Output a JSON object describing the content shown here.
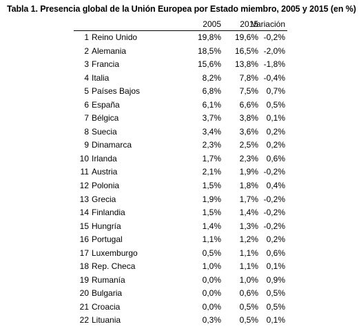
{
  "title": "Tabla 1. Presencia global de la Unión Europea por Estado miembro, 2005 y 2015 (en %)",
  "table": {
    "columns": [
      "2005",
      "2015",
      "Variación"
    ],
    "rows": [
      {
        "rank": "1",
        "country": "Reino Unido",
        "y2005": "19,8%",
        "y2015": "19,6%",
        "change": "-0,2%"
      },
      {
        "rank": "2",
        "country": "Alemania",
        "y2005": "18,5%",
        "y2015": "16,5%",
        "change": "-2,0%"
      },
      {
        "rank": "3",
        "country": "Francia",
        "y2005": "15,6%",
        "y2015": "13,8%",
        "change": "-1,8%"
      },
      {
        "rank": "4",
        "country": "Italia",
        "y2005": "8,2%",
        "y2015": "7,8%",
        "change": "-0,4%"
      },
      {
        "rank": "5",
        "country": "Países Bajos",
        "y2005": "6,8%",
        "y2015": "7,5%",
        "change": "0,7%"
      },
      {
        "rank": "6",
        "country": "España",
        "y2005": "6,1%",
        "y2015": "6,6%",
        "change": "0,5%"
      },
      {
        "rank": "7",
        "country": "Bélgica",
        "y2005": "3,7%",
        "y2015": "3,8%",
        "change": "0,1%"
      },
      {
        "rank": "8",
        "country": "Suecia",
        "y2005": "3,4%",
        "y2015": "3,6%",
        "change": "0,2%"
      },
      {
        "rank": "9",
        "country": "Dinamarca",
        "y2005": "2,3%",
        "y2015": "2,5%",
        "change": "0,2%"
      },
      {
        "rank": "10",
        "country": "Irlanda",
        "y2005": "1,7%",
        "y2015": "2,3%",
        "change": "0,6%"
      },
      {
        "rank": "11",
        "country": "Austria",
        "y2005": "2,1%",
        "y2015": "1,9%",
        "change": "-0,2%"
      },
      {
        "rank": "12",
        "country": "Polonia",
        "y2005": "1,5%",
        "y2015": "1,8%",
        "change": "0,4%"
      },
      {
        "rank": "13",
        "country": "Grecia",
        "y2005": "1,9%",
        "y2015": "1,7%",
        "change": "-0,2%"
      },
      {
        "rank": "14",
        "country": "Finlandia",
        "y2005": "1,5%",
        "y2015": "1,4%",
        "change": "-0,2%"
      },
      {
        "rank": "15",
        "country": "Hungría",
        "y2005": "1,4%",
        "y2015": "1,3%",
        "change": "-0,2%"
      },
      {
        "rank": "16",
        "country": "Portugal",
        "y2005": "1,1%",
        "y2015": "1,2%",
        "change": "0,2%"
      },
      {
        "rank": "17",
        "country": "Luxemburgo",
        "y2005": "0,5%",
        "y2015": "1,1%",
        "change": "0,6%"
      },
      {
        "rank": "18",
        "country": "Rep. Checa",
        "y2005": "1,0%",
        "y2015": "1,1%",
        "change": "0,1%"
      },
      {
        "rank": "19",
        "country": "Rumanía",
        "y2005": "0,0%",
        "y2015": "1,0%",
        "change": "0,9%"
      },
      {
        "rank": "20",
        "country": "Bulgaria",
        "y2005": "0,0%",
        "y2015": "0,6%",
        "change": "0,5%"
      },
      {
        "rank": "21",
        "country": "Croacia",
        "y2005": "0,0%",
        "y2015": "0,5%",
        "change": "0,5%"
      },
      {
        "rank": "22",
        "country": "Lituania",
        "y2005": "0,3%",
        "y2015": "0,5%",
        "change": "0,1%"
      }
    ]
  }
}
